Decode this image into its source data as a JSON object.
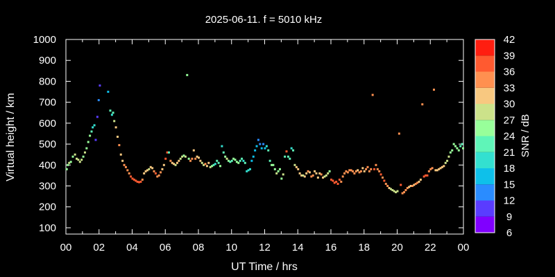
{
  "chart_data": {
    "type": "scatter",
    "title": "2025-06-11. f = 5010 kHz",
    "xlabel": "UT Time / hrs",
    "ylabel": "Virtual height / km",
    "xlim": [
      0,
      24
    ],
    "ylim": [
      70,
      1000
    ],
    "x_ticks": [
      "00",
      "02",
      "04",
      "06",
      "08",
      "10",
      "12",
      "14",
      "16",
      "18",
      "20",
      "22",
      "00"
    ],
    "y_ticks": [
      "100",
      "200",
      "300",
      "400",
      "500",
      "600",
      "700",
      "800",
      "900",
      "1000"
    ],
    "colorbar": {
      "label": "SNR / dB",
      "min": 6,
      "max": 42,
      "ticks": [
        "6",
        "9",
        "12",
        "15",
        "18",
        "21",
        "24",
        "27",
        "30",
        "33",
        "36",
        "39",
        "42"
      ],
      "bands": [
        {
          "lo": 6,
          "hi": 9,
          "color": "#8000ff"
        },
        {
          "lo": 9,
          "hi": 12,
          "color": "#5a3cff"
        },
        {
          "lo": 12,
          "hi": 15,
          "color": "#2a8cff"
        },
        {
          "lo": 15,
          "hi": 18,
          "color": "#0ec0ea"
        },
        {
          "lo": 18,
          "hi": 21,
          "color": "#33e0d0"
        },
        {
          "lo": 21,
          "hi": 24,
          "color": "#5ff5b8"
        },
        {
          "lo": 24,
          "hi": 27,
          "color": "#98ff9a"
        },
        {
          "lo": 27,
          "hi": 30,
          "color": "#cce28a"
        },
        {
          "lo": 30,
          "hi": 33,
          "color": "#f8c880"
        },
        {
          "lo": 33,
          "hi": 36,
          "color": "#ff9050"
        },
        {
          "lo": 36,
          "hi": 39,
          "color": "#ff5a30"
        },
        {
          "lo": 39,
          "hi": 42,
          "color": "#ff1e10"
        }
      ]
    },
    "grid": false,
    "points": [
      [
        0.05,
        380,
        26
      ],
      [
        0.12,
        400,
        26
      ],
      [
        0.2,
        410,
        28
      ],
      [
        0.3,
        415,
        25
      ],
      [
        0.42,
        440,
        26
      ],
      [
        0.55,
        450,
        28
      ],
      [
        0.65,
        430,
        27
      ],
      [
        0.75,
        425,
        29
      ],
      [
        0.85,
        415,
        27
      ],
      [
        0.95,
        425,
        28
      ],
      [
        1.05,
        440,
        26
      ],
      [
        1.15,
        460,
        27
      ],
      [
        1.25,
        480,
        26
      ],
      [
        1.35,
        510,
        25
      ],
      [
        1.45,
        540,
        24
      ],
      [
        1.55,
        560,
        22
      ],
      [
        1.62,
        580,
        20
      ],
      [
        1.72,
        590,
        18
      ],
      [
        1.8,
        520,
        10
      ],
      [
        1.9,
        630,
        10
      ],
      [
        1.98,
        710,
        12
      ],
      [
        2.05,
        780,
        10
      ],
      [
        2.55,
        750,
        15
      ],
      [
        2.68,
        660,
        22
      ],
      [
        2.78,
        640,
        20
      ],
      [
        2.85,
        650,
        21
      ],
      [
        2.92,
        610,
        27
      ],
      [
        3.02,
        580,
        31
      ],
      [
        3.12,
        535,
        32
      ],
      [
        3.22,
        495,
        33
      ],
      [
        3.32,
        450,
        31
      ],
      [
        3.42,
        420,
        32
      ],
      [
        3.52,
        400,
        34
      ],
      [
        3.62,
        390,
        35
      ],
      [
        3.72,
        375,
        34
      ],
      [
        3.82,
        360,
        35
      ],
      [
        3.92,
        345,
        36
      ],
      [
        4.02,
        335,
        36
      ],
      [
        4.12,
        330,
        37
      ],
      [
        4.22,
        325,
        36
      ],
      [
        4.32,
        320,
        37
      ],
      [
        4.42,
        318,
        36
      ],
      [
        4.52,
        320,
        37
      ],
      [
        4.62,
        330,
        33
      ],
      [
        4.72,
        360,
        32
      ],
      [
        4.82,
        370,
        31
      ],
      [
        4.92,
        375,
        30
      ],
      [
        5.02,
        380,
        29
      ],
      [
        5.12,
        390,
        30
      ],
      [
        5.22,
        385,
        31
      ],
      [
        5.32,
        370,
        34
      ],
      [
        5.42,
        360,
        36
      ],
      [
        5.52,
        345,
        35
      ],
      [
        5.62,
        350,
        34
      ],
      [
        5.72,
        365,
        33
      ],
      [
        5.82,
        380,
        32
      ],
      [
        5.92,
        400,
        31
      ],
      [
        6.02,
        430,
        36
      ],
      [
        6.12,
        460,
        37
      ],
      [
        6.22,
        460,
        23
      ],
      [
        6.32,
        420,
        33
      ],
      [
        6.42,
        410,
        31
      ],
      [
        6.52,
        405,
        30
      ],
      [
        6.62,
        400,
        29
      ],
      [
        6.72,
        410,
        31
      ],
      [
        6.82,
        420,
        30
      ],
      [
        6.92,
        430,
        28
      ],
      [
        7.02,
        440,
        27
      ],
      [
        7.12,
        445,
        25
      ],
      [
        7.22,
        440,
        29
      ],
      [
        7.32,
        830,
        24
      ],
      [
        7.42,
        430,
        26
      ],
      [
        7.52,
        420,
        34
      ],
      [
        7.62,
        430,
        33
      ],
      [
        7.72,
        470,
        31
      ],
      [
        7.82,
        430,
        33
      ],
      [
        7.92,
        440,
        30
      ],
      [
        8.02,
        435,
        32
      ],
      [
        8.12,
        420,
        30
      ],
      [
        8.22,
        410,
        29
      ],
      [
        8.32,
        400,
        28
      ],
      [
        8.42,
        405,
        34
      ],
      [
        8.52,
        395,
        32
      ],
      [
        8.62,
        410,
        30
      ],
      [
        8.72,
        390,
        28
      ],
      [
        8.82,
        395,
        24
      ],
      [
        8.92,
        400,
        22
      ],
      [
        9.02,
        405,
        20
      ],
      [
        9.12,
        420,
        22
      ],
      [
        9.22,
        410,
        23
      ],
      [
        9.32,
        395,
        24
      ],
      [
        9.42,
        490,
        19
      ],
      [
        9.52,
        460,
        22
      ],
      [
        9.62,
        440,
        24
      ],
      [
        9.72,
        430,
        27
      ],
      [
        9.82,
        420,
        25
      ],
      [
        9.92,
        415,
        23
      ],
      [
        10.02,
        420,
        22
      ],
      [
        10.12,
        430,
        24
      ],
      [
        10.22,
        425,
        26
      ],
      [
        10.32,
        415,
        25
      ],
      [
        10.42,
        410,
        24
      ],
      [
        10.52,
        420,
        22
      ],
      [
        10.62,
        430,
        21
      ],
      [
        10.72,
        420,
        20
      ],
      [
        10.82,
        410,
        22
      ],
      [
        10.92,
        370,
        18
      ],
      [
        11.02,
        375,
        19
      ],
      [
        11.12,
        380,
        20
      ],
      [
        11.22,
        420,
        17
      ],
      [
        11.32,
        440,
        16
      ],
      [
        11.42,
        470,
        17
      ],
      [
        11.52,
        490,
        15
      ],
      [
        11.62,
        520,
        14
      ],
      [
        11.72,
        500,
        13
      ],
      [
        11.82,
        480,
        17
      ],
      [
        11.92,
        500,
        14
      ],
      [
        12.02,
        480,
        16
      ],
      [
        12.12,
        490,
        20
      ],
      [
        12.22,
        470,
        22
      ],
      [
        12.32,
        420,
        23
      ],
      [
        12.42,
        400,
        24
      ],
      [
        12.52,
        400,
        25
      ],
      [
        12.62,
        380,
        26
      ],
      [
        12.72,
        360,
        27
      ],
      [
        12.82,
        370,
        25
      ],
      [
        12.92,
        380,
        26
      ],
      [
        13.02,
        335,
        24
      ],
      [
        13.12,
        355,
        28
      ],
      [
        13.22,
        440,
        22
      ],
      [
        13.32,
        465,
        36
      ],
      [
        13.42,
        440,
        23
      ],
      [
        13.52,
        430,
        22
      ],
      [
        13.62,
        480,
        20
      ],
      [
        13.72,
        470,
        22
      ],
      [
        13.82,
        400,
        27
      ],
      [
        13.92,
        390,
        30
      ],
      [
        14.02,
        380,
        31
      ],
      [
        14.12,
        360,
        30
      ],
      [
        14.22,
        350,
        32
      ],
      [
        14.32,
        350,
        29
      ],
      [
        14.42,
        345,
        31
      ],
      [
        14.52,
        360,
        30
      ],
      [
        14.62,
        370,
        33
      ],
      [
        14.72,
        365,
        32
      ],
      [
        14.82,
        345,
        34
      ],
      [
        14.92,
        350,
        33
      ],
      [
        15.02,
        370,
        31
      ],
      [
        15.12,
        360,
        30
      ],
      [
        15.22,
        340,
        32
      ],
      [
        15.32,
        360,
        31
      ],
      [
        15.42,
        355,
        33
      ],
      [
        15.52,
        340,
        31
      ],
      [
        15.62,
        345,
        29
      ],
      [
        15.72,
        350,
        28
      ],
      [
        15.82,
        360,
        27
      ],
      [
        15.92,
        370,
        26
      ],
      [
        16.02,
        330,
        37
      ],
      [
        16.12,
        325,
        38
      ],
      [
        16.22,
        315,
        37
      ],
      [
        16.32,
        320,
        38
      ],
      [
        16.42,
        310,
        36
      ],
      [
        16.52,
        330,
        36
      ],
      [
        16.62,
        320,
        35
      ],
      [
        16.72,
        345,
        33
      ],
      [
        16.82,
        360,
        34
      ],
      [
        16.92,
        370,
        33
      ],
      [
        17.02,
        365,
        34
      ],
      [
        17.12,
        375,
        35
      ],
      [
        17.22,
        375,
        34
      ],
      [
        17.32,
        370,
        33
      ],
      [
        17.42,
        360,
        35
      ],
      [
        17.52,
        370,
        33
      ],
      [
        17.62,
        375,
        32
      ],
      [
        17.72,
        365,
        34
      ],
      [
        17.82,
        370,
        33
      ],
      [
        17.92,
        385,
        32
      ],
      [
        18.02,
        370,
        31
      ],
      [
        18.12,
        380,
        34
      ],
      [
        18.22,
        390,
        33
      ],
      [
        18.32,
        370,
        35
      ],
      [
        18.42,
        380,
        34
      ],
      [
        18.52,
        735,
        33
      ],
      [
        18.62,
        380,
        36
      ],
      [
        18.72,
        400,
        33
      ],
      [
        18.82,
        380,
        34
      ],
      [
        18.92,
        370,
        35
      ],
      [
        19.02,
        355,
        36
      ],
      [
        19.12,
        340,
        35
      ],
      [
        19.22,
        325,
        36
      ],
      [
        19.32,
        310,
        35
      ],
      [
        19.42,
        300,
        33
      ],
      [
        19.52,
        290,
        31
      ],
      [
        19.62,
        285,
        29
      ],
      [
        19.72,
        280,
        28
      ],
      [
        19.82,
        275,
        27
      ],
      [
        19.92,
        270,
        28
      ],
      [
        20.02,
        275,
        29
      ],
      [
        20.12,
        550,
        34
      ],
      [
        20.22,
        305,
        36
      ],
      [
        20.32,
        265,
        35
      ],
      [
        20.42,
        270,
        34
      ],
      [
        20.52,
        280,
        33
      ],
      [
        20.62,
        290,
        34
      ],
      [
        20.72,
        295,
        32
      ],
      [
        20.82,
        300,
        31
      ],
      [
        20.92,
        300,
        33
      ],
      [
        21.02,
        305,
        32
      ],
      [
        21.12,
        310,
        34
      ],
      [
        21.22,
        315,
        33
      ],
      [
        21.32,
        320,
        32
      ],
      [
        21.42,
        330,
        31
      ],
      [
        21.52,
        690,
        34
      ],
      [
        21.62,
        345,
        36
      ],
      [
        21.72,
        350,
        37
      ],
      [
        21.82,
        350,
        36
      ],
      [
        21.92,
        370,
        34
      ],
      [
        22.02,
        380,
        35
      ],
      [
        22.12,
        385,
        33
      ],
      [
        22.22,
        760,
        33
      ],
      [
        22.32,
        375,
        32
      ],
      [
        22.42,
        375,
        31
      ],
      [
        22.52,
        380,
        32
      ],
      [
        22.62,
        385,
        31
      ],
      [
        22.72,
        390,
        32
      ],
      [
        22.82,
        395,
        30
      ],
      [
        22.92,
        410,
        29
      ],
      [
        23.02,
        420,
        28
      ],
      [
        23.12,
        440,
        27
      ],
      [
        23.22,
        460,
        26
      ],
      [
        23.32,
        470,
        25
      ],
      [
        23.42,
        500,
        24
      ],
      [
        23.52,
        490,
        26
      ],
      [
        23.62,
        480,
        25
      ],
      [
        23.72,
        470,
        24
      ],
      [
        23.82,
        490,
        23
      ],
      [
        23.92,
        500,
        22
      ],
      [
        23.98,
        480,
        24
      ]
    ]
  }
}
